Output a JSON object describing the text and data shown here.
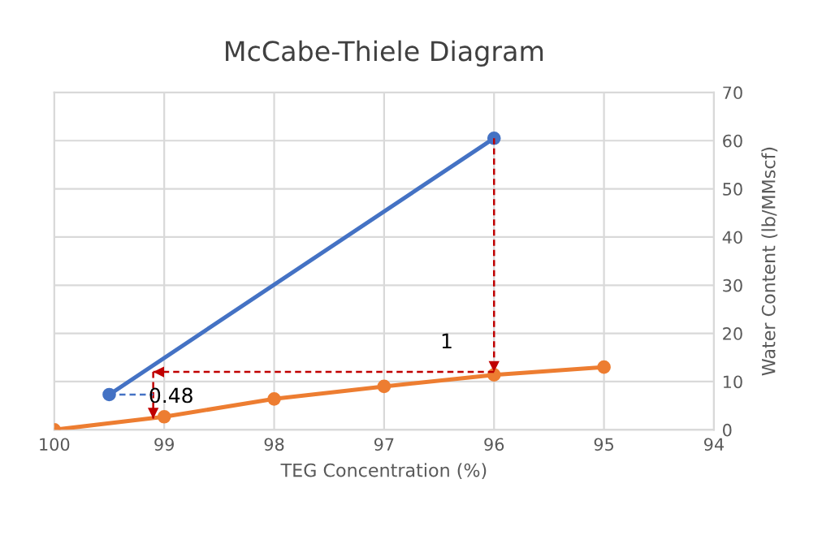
{
  "chart_data": {
    "type": "line",
    "title": "McCabe-Thiele Diagram",
    "xlabel": "TEG Concentration (%)",
    "ylabel": "Water Content (lb/MMscf)",
    "xlim": [
      100,
      94
    ],
    "xticks": [
      100,
      99,
      98,
      97,
      96,
      95,
      94
    ],
    "ylim": [
      0,
      70
    ],
    "yticks": [
      0,
      10,
      20,
      30,
      40,
      50,
      60,
      70
    ],
    "grid": true,
    "legend": false,
    "series": [
      {
        "color": "#4472c4",
        "x": [
          99.5,
          96.0
        ],
        "values": [
          7.3,
          60.5
        ],
        "marker": "circle",
        "line_style": "solid"
      },
      {
        "color": "#ed7d31",
        "x": [
          100,
          99,
          98,
          97,
          96,
          95
        ],
        "values": [
          0,
          2.7,
          6.4,
          9.0,
          11.4,
          13.0
        ],
        "marker": "circle",
        "line_style": "solid"
      },
      {
        "color": "#c00000",
        "x": [
          96.0,
          96.0
        ],
        "values": [
          60.5,
          12.0
        ],
        "marker": "none",
        "line_style": "dashed"
      },
      {
        "color": "#c00000",
        "x": [
          96.0,
          99.1
        ],
        "values": [
          12.0,
          12.0
        ],
        "marker": "none",
        "line_style": "dashed"
      },
      {
        "color": "#c00000",
        "x": [
          99.1,
          99.1
        ],
        "values": [
          12.0,
          2.3
        ],
        "marker": "none",
        "line_style": "dashed"
      },
      {
        "color": "#4472c4",
        "x": [
          99.5,
          99.1
        ],
        "values": [
          7.3,
          7.3
        ],
        "marker": "none",
        "line_style": "dashed"
      }
    ],
    "annotations": [
      "1",
      "0.48"
    ]
  }
}
